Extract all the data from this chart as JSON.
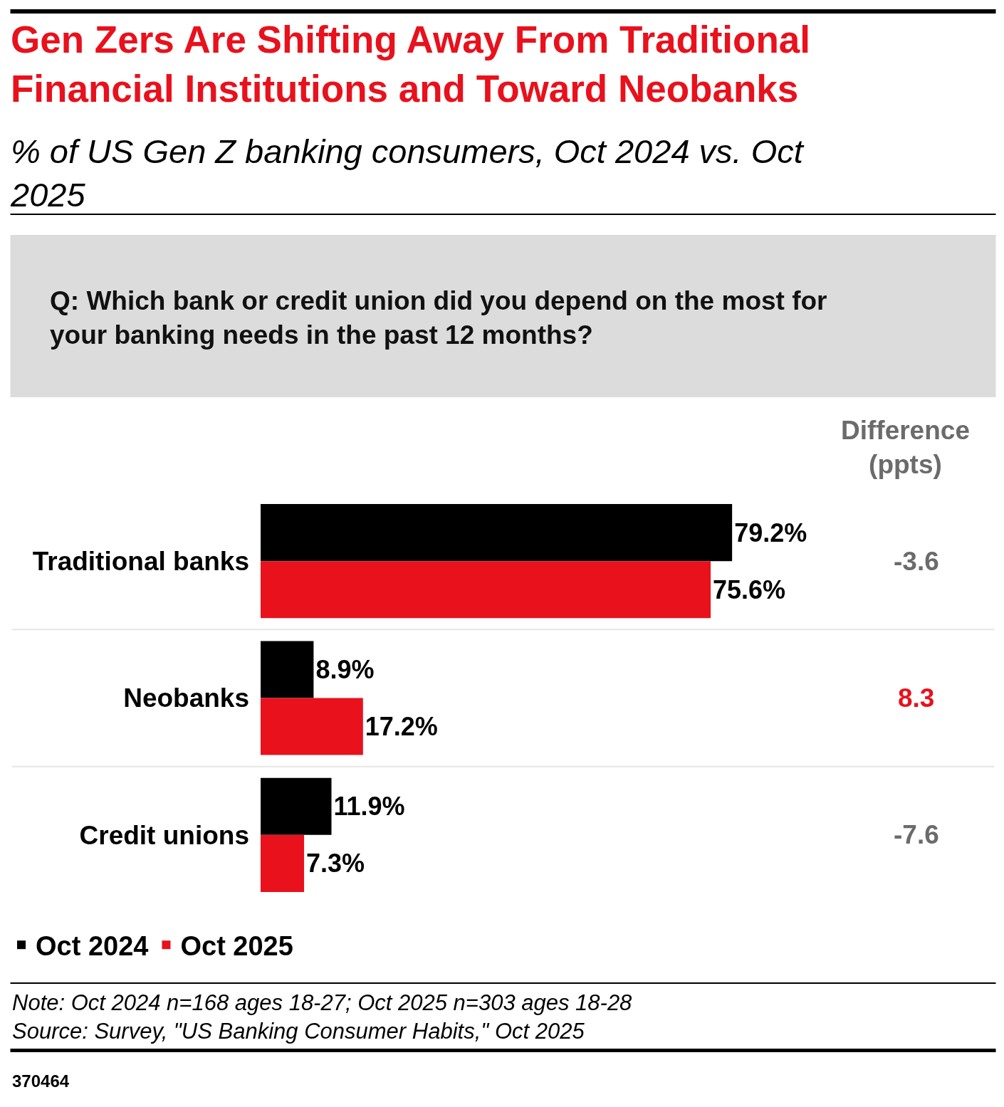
{
  "chart_data": {
    "type": "bar",
    "orientation": "horizontal",
    "title": "Gen Zers Are Shifting Away From Traditional Financial Institutions and Toward Neobanks",
    "subtitle": "% of US Gen Z banking consumers, Oct 2024 vs. Oct 2025",
    "categories": [
      "Traditional banks",
      "Neobanks",
      "Credit unions"
    ],
    "series": [
      {
        "name": "Oct 2024",
        "color": "#000000",
        "values": [
          79.2,
          8.9,
          11.9
        ],
        "value_labels": [
          "79.2%",
          "8.9%",
          "11.9%"
        ]
      },
      {
        "name": "Oct 2025",
        "color": "#e8111c",
        "values": [
          75.6,
          17.2,
          7.3
        ],
        "value_labels": [
          "75.6%",
          "17.2%",
          "7.3%"
        ]
      }
    ],
    "tick_labels": "y",
    "grid": "y",
    "legend": "bottom left",
    "annotations": [
      "Q: Which bank or credit union did you depend on the most for your banking needs in the past 12 months?",
      "Difference (ppts)",
      "-3.6",
      "8.3",
      "-7.6",
      "Note: Oct 2024 n=168 ages 18-27; Oct 2025 n=303 ages 18-28",
      "Source: Survey, \"US Banking Consumer Habits,\" Oct 2025",
      "370464"
    ]
  }
}
